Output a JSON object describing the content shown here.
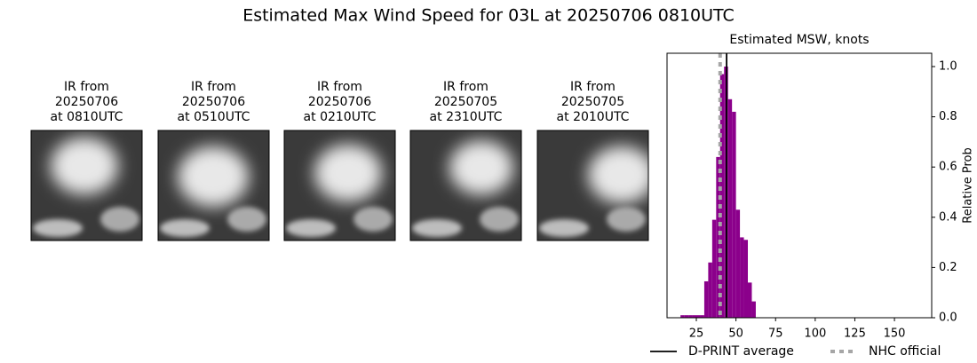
{
  "title": "Estimated Max Wind Speed for 03L at 20250706 0810UTC",
  "images": [
    {
      "lines": [
        "IR from",
        "20250706",
        "at 0810UTC"
      ]
    },
    {
      "lines": [
        "IR from",
        "20250706",
        "at 0510UTC"
      ]
    },
    {
      "lines": [
        "IR from",
        "20250706",
        "at 0210UTC"
      ]
    },
    {
      "lines": [
        "IR from",
        "20250705",
        "at 2310UTC"
      ]
    },
    {
      "lines": [
        "IR from",
        "20250705",
        "at 2010UTC"
      ]
    }
  ],
  "chart_data": {
    "type": "histogram",
    "title": "Estimated MSW, knots",
    "y_label": "Relative Prob",
    "y_axis_side": "right",
    "color": "#8b008b",
    "bins": [
      15,
      17.5,
      20,
      22.5,
      25,
      27.5,
      30,
      32.5,
      35,
      37.5,
      40,
      42.5,
      45,
      47.5,
      50,
      52.5,
      55,
      57.5,
      60,
      62.5
    ],
    "values": [
      0.01,
      0.01,
      0.01,
      0.01,
      0.01,
      0.01,
      0.145,
      0.22,
      0.39,
      0.64,
      0.97,
      1.0,
      0.87,
      0.82,
      0.43,
      0.32,
      0.31,
      0.14,
      0.065
    ],
    "xlim": [
      6.5,
      173.5
    ],
    "ylim": [
      0,
      1.053
    ],
    "xticks": [
      25,
      50,
      75,
      100,
      125,
      150
    ],
    "yticks": [
      {
        "value": 0,
        "label": "0.0"
      },
      0.2,
      0.4,
      0.6,
      0.8,
      {
        "value": 1,
        "label": "1.0"
      }
    ],
    "reference_lines": [
      {
        "name": "D-PRINT average",
        "value": 44.1,
        "color": "#000000",
        "style": "solid"
      },
      {
        "name": "NHC official",
        "value": 40,
        "color": "#a6a6a6",
        "style": "dotted"
      }
    ]
  }
}
